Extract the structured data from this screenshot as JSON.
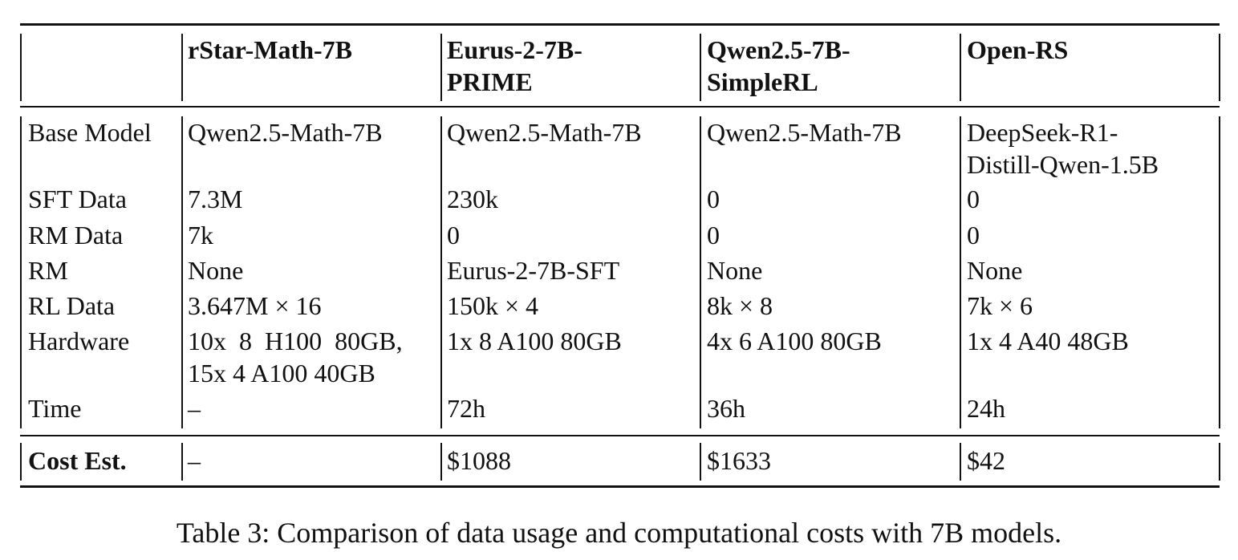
{
  "table": {
    "header": [
      "rStar-Math-7B",
      [
        "Eurus-2-7B-",
        "PRIME"
      ],
      [
        "Qwen2.5-7B-",
        "SimpleRL"
      ],
      "Open-RS"
    ],
    "rows": [
      {
        "label": "Base Model",
        "cells": [
          "Qwen2.5-Math-7B",
          "Qwen2.5-Math-7B",
          "Qwen2.5-Math-7B",
          [
            "DeepSeek-R1-",
            "Distill-Qwen-1.5B"
          ]
        ]
      },
      {
        "label": "SFT Data",
        "cells": [
          "7.3M",
          "230k",
          "0",
          "0"
        ]
      },
      {
        "label": "RM Data",
        "cells": [
          "7k",
          "0",
          "0",
          "0"
        ]
      },
      {
        "label": "RM",
        "cells": [
          "None",
          "Eurus-2-7B-SFT",
          "None",
          "None"
        ]
      },
      {
        "label": "RL Data",
        "cells": [
          "3.647M × 16",
          "150k × 4",
          "8k × 8",
          "7k × 6"
        ]
      },
      {
        "label": "Hardware",
        "cells": [
          [
            "10x  8  H100  80GB,",
            "15x 4 A100 40GB"
          ],
          "1x 8 A100 80GB",
          "4x 6 A100 80GB",
          "1x 4 A40 48GB"
        ]
      },
      {
        "label": "Time",
        "cells": [
          "–",
          "72h",
          "36h",
          "24h"
        ]
      }
    ],
    "total": {
      "label": "Cost Est.",
      "cells": [
        "–",
        "$1088",
        "$1633",
        "$42"
      ]
    }
  },
  "caption": "Table 3: Comparison of data usage and computational costs with 7B models."
}
